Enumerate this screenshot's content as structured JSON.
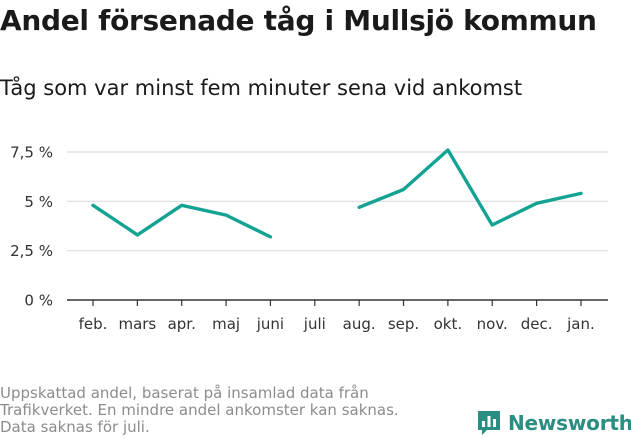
{
  "title": "Andel försenade tåg i Mullsjö kommun",
  "subtitle": "Tåg som var minst fem minuter sena vid ankomst",
  "footnote": [
    "Uppskattad andel, baserat på insamlad data från",
    "Trafikverket. En mindre andel ankomster kan saknas.",
    "Data saknas för juli."
  ],
  "brand": {
    "name": "Newsworthy",
    "icon": "bar-chart-logo-icon",
    "color": "#2a8f82"
  },
  "chart_data": {
    "type": "line",
    "categories": [
      "feb.",
      "mars",
      "apr.",
      "maj",
      "juni",
      "juli",
      "aug.",
      "sep.",
      "okt.",
      "nov.",
      "dec.",
      "jan."
    ],
    "series": [
      {
        "values": [
          4.8,
          3.3,
          4.8,
          4.3,
          3.2,
          null,
          4.7,
          5.6,
          7.6,
          3.8,
          4.9,
          5.4
        ]
      }
    ],
    "ylim": [
      0,
      7.5
    ],
    "yticks": [
      0,
      2.5,
      5,
      7.5
    ],
    "ytick_labels": [
      "0 %",
      "2,5 %",
      "5 %",
      "7,5 %"
    ],
    "grid": true,
    "line_color": "#14a393"
  }
}
